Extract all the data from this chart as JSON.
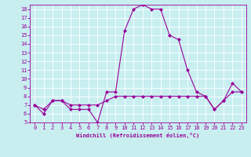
{
  "xlabel": "Windchill (Refroidissement éolien,°C)",
  "background_color": "#c8eef0",
  "line_color": "#990099",
  "grid_color": "#ffffff",
  "hours": [
    0,
    1,
    2,
    3,
    4,
    5,
    6,
    7,
    8,
    9,
    10,
    11,
    12,
    13,
    14,
    15,
    16,
    17,
    18,
    19,
    20,
    21,
    22,
    23
  ],
  "temp": [
    7,
    6,
    7.5,
    7.5,
    6.5,
    6.5,
    6.5,
    5,
    8.5,
    8.5,
    15.5,
    18,
    18.5,
    18,
    18,
    15,
    14.5,
    11,
    8.5,
    8,
    6.5,
    7.5,
    9.5,
    8.5
  ],
  "windchill": [
    7,
    6.5,
    7.5,
    7.5,
    7,
    7,
    7,
    7,
    7.5,
    8,
    8,
    8,
    8,
    8,
    8,
    8,
    8,
    8,
    8,
    8,
    6.5,
    7.5,
    8.5,
    8.5
  ],
  "ylim": [
    5,
    18.5
  ],
  "xlim": [
    -0.5,
    23.5
  ],
  "yticks": [
    5,
    6,
    7,
    8,
    9,
    10,
    11,
    12,
    13,
    14,
    15,
    16,
    17,
    18
  ],
  "xticks": [
    0,
    1,
    2,
    3,
    4,
    5,
    6,
    7,
    8,
    9,
    10,
    11,
    12,
    13,
    14,
    15,
    16,
    17,
    18,
    19,
    20,
    21,
    22,
    23
  ],
  "tick_fontsize": 5,
  "xlabel_fontsize": 5,
  "line_width": 0.8,
  "marker_size": 2.5
}
